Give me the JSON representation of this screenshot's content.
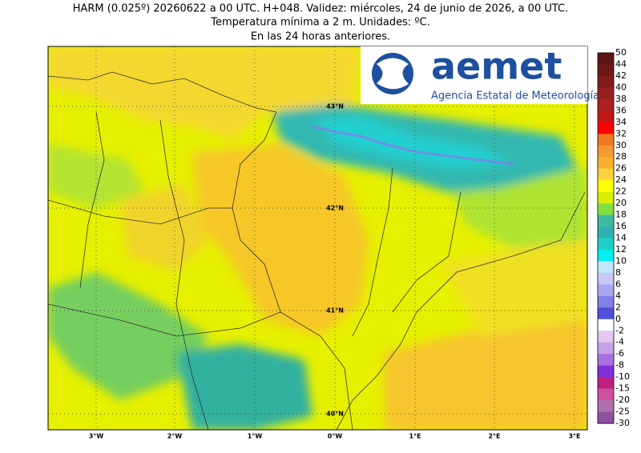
{
  "header": {
    "lines": [
      "HARM (0.025º) 20260622 a 00 UTC. H+048. Validez: miércoles, 24 de junio de 2026, a 00 UTC.",
      "Temperatura mínima a 2 m. Unidades: ºC.",
      "En las 24 horas anteriores."
    ]
  },
  "map": {
    "lat_labels": [
      "43°N",
      "42°N",
      "41°N",
      "40°N"
    ],
    "lon_labels": [
      "3°W",
      "2°W",
      "1°W",
      "0°W",
      "1°E",
      "2°E",
      "3°E"
    ]
  },
  "logo": {
    "name": "aemet",
    "subtitle": "Agencia Estatal de Meteorología"
  },
  "colorbar": {
    "labels": [
      50,
      44,
      42,
      40,
      38,
      36,
      34,
      32,
      30,
      28,
      26,
      24,
      22,
      20,
      18,
      16,
      14,
      12,
      10,
      8,
      6,
      4,
      2,
      0,
      -2,
      -4,
      -6,
      -8,
      -10,
      -15,
      -20,
      -25,
      -30
    ],
    "colors": [
      "#5c1414",
      "#6e1818",
      "#801c1c",
      "#962020",
      "#aa2020",
      "#c01818",
      "#ff0000",
      "#f07820",
      "#f59a30",
      "#f7b030",
      "#fad23c",
      "#ffff00",
      "#d8f000",
      "#80e040",
      "#40b8a0",
      "#30b0b0",
      "#20d0c8",
      "#00f0f0",
      "#c0e8f8",
      "#c8c8f8",
      "#a8a8f0",
      "#8080e8",
      "#5050d8",
      "#ffffff",
      "#e0c8f0",
      "#c8a0e8",
      "#a870e0",
      "#8030d8",
      "#c02080",
      "#d050a0",
      "#b070b0",
      "#9050a0"
    ]
  }
}
